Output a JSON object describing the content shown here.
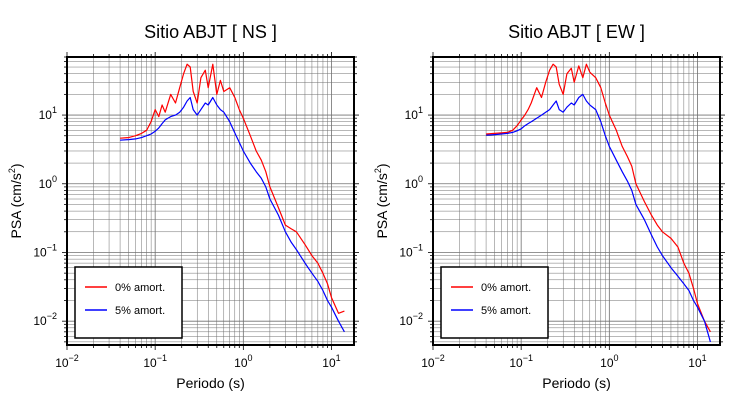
{
  "chart_data": [
    {
      "type": "line",
      "title": "Sitio ABJT [ NS ]",
      "xlabel": "Periodo (s)",
      "ylabel": "PSA (cm/s",
      "ylabel_sup": "2",
      "ylabel_end": ")",
      "xscale": "log",
      "yscale": "log",
      "xlim": [
        0.01,
        18
      ],
      "ylim": [
        0.0045,
        70
      ],
      "grid": true,
      "legend_position": "bottom-left",
      "x_ticks": [
        {
          "value": 0.01,
          "base": "10",
          "exp": "−2"
        },
        {
          "value": 0.1,
          "base": "10",
          "exp": "−1"
        },
        {
          "value": 1,
          "base": "10",
          "exp": "0"
        },
        {
          "value": 10,
          "base": "10",
          "exp": "1"
        }
      ],
      "y_ticks": [
        {
          "value": 0.01,
          "base": "10",
          "exp": "−2"
        },
        {
          "value": 0.1,
          "base": "10",
          "exp": "−1"
        },
        {
          "value": 1,
          "base": "10",
          "exp": "0"
        },
        {
          "value": 10,
          "base": "10",
          "exp": "1"
        }
      ],
      "series": [
        {
          "name": "0% amort.",
          "color": "#ff0000",
          "x": [
            0.04,
            0.05,
            0.06,
            0.07,
            0.08,
            0.09,
            0.1,
            0.11,
            0.12,
            0.13,
            0.15,
            0.17,
            0.19,
            0.21,
            0.23,
            0.25,
            0.27,
            0.3,
            0.33,
            0.37,
            0.4,
            0.45,
            0.5,
            0.55,
            0.6,
            0.7,
            0.8,
            0.9,
            1.0,
            1.2,
            1.4,
            1.6,
            1.8,
            2.0,
            2.5,
            3.0,
            3.5,
            4.0,
            5.0,
            6.0,
            7.0,
            8.0,
            9.0,
            10.0,
            12.0,
            14.0
          ],
          "y": [
            4.6,
            4.7,
            5.0,
            5.4,
            6.0,
            8.0,
            12.0,
            9.5,
            14.0,
            11.0,
            20.0,
            15.0,
            25.0,
            40.0,
            55.0,
            50.0,
            22.0,
            15.0,
            35.0,
            45.0,
            25.0,
            55.0,
            20.0,
            32.0,
            22.0,
            25.0,
            18.0,
            12.0,
            9.0,
            5.0,
            3.0,
            2.2,
            1.5,
            0.9,
            0.45,
            0.25,
            0.22,
            0.2,
            0.13,
            0.09,
            0.07,
            0.05,
            0.035,
            0.022,
            0.013,
            0.014
          ]
        },
        {
          "name": "5% amort.",
          "color": "#0000ff",
          "x": [
            0.04,
            0.05,
            0.06,
            0.07,
            0.08,
            0.09,
            0.1,
            0.11,
            0.12,
            0.13,
            0.15,
            0.17,
            0.19,
            0.21,
            0.23,
            0.25,
            0.27,
            0.3,
            0.33,
            0.37,
            0.4,
            0.45,
            0.5,
            0.55,
            0.6,
            0.7,
            0.8,
            0.9,
            1.0,
            1.2,
            1.4,
            1.6,
            1.8,
            2.0,
            2.5,
            3.0,
            3.5,
            4.0,
            5.0,
            6.0,
            7.0,
            8.0,
            9.0,
            10.0,
            12.0,
            14.0
          ],
          "y": [
            4.3,
            4.4,
            4.5,
            4.7,
            5.0,
            5.3,
            5.8,
            6.5,
            7.5,
            8.5,
            9.5,
            10.0,
            11.0,
            13.0,
            16.0,
            18.0,
            12.0,
            10.0,
            12.0,
            15.0,
            14.0,
            18.0,
            14.0,
            12.0,
            11.0,
            8.0,
            5.5,
            4.0,
            3.0,
            2.0,
            1.5,
            1.2,
            0.9,
            0.6,
            0.35,
            0.2,
            0.14,
            0.11,
            0.07,
            0.05,
            0.038,
            0.028,
            0.02,
            0.016,
            0.01,
            0.007
          ]
        }
      ]
    },
    {
      "type": "line",
      "title": "Sitio ABJT [ EW ]",
      "xlabel": "Periodo (s)",
      "ylabel": "PSA (cm/s",
      "ylabel_sup": "2",
      "ylabel_end": ")",
      "xscale": "log",
      "yscale": "log",
      "xlim": [
        0.01,
        18
      ],
      "ylim": [
        0.0045,
        70
      ],
      "grid": true,
      "legend_position": "bottom-left",
      "x_ticks": [
        {
          "value": 0.01,
          "base": "10",
          "exp": "−2"
        },
        {
          "value": 0.1,
          "base": "10",
          "exp": "−1"
        },
        {
          "value": 1,
          "base": "10",
          "exp": "0"
        },
        {
          "value": 10,
          "base": "10",
          "exp": "1"
        }
      ],
      "y_ticks": [
        {
          "value": 0.01,
          "base": "10",
          "exp": "−2"
        },
        {
          "value": 0.1,
          "base": "10",
          "exp": "−1"
        },
        {
          "value": 1,
          "base": "10",
          "exp": "0"
        },
        {
          "value": 10,
          "base": "10",
          "exp": "1"
        }
      ],
      "series": [
        {
          "name": "0% amort.",
          "color": "#ff0000",
          "x": [
            0.04,
            0.05,
            0.06,
            0.07,
            0.08,
            0.09,
            0.1,
            0.11,
            0.12,
            0.13,
            0.15,
            0.17,
            0.19,
            0.21,
            0.23,
            0.25,
            0.27,
            0.3,
            0.33,
            0.37,
            0.4,
            0.45,
            0.5,
            0.55,
            0.6,
            0.7,
            0.8,
            0.9,
            1.0,
            1.2,
            1.4,
            1.6,
            1.8,
            2.0,
            2.5,
            3.0,
            3.5,
            4.0,
            5.0,
            6.0,
            7.0,
            8.0,
            9.0,
            10.0,
            12.0,
            14.0
          ],
          "y": [
            5.3,
            5.4,
            5.5,
            5.6,
            6.0,
            7.0,
            8.5,
            10.0,
            12.0,
            15.0,
            25.0,
            18.0,
            30.0,
            45.0,
            55.0,
            50.0,
            28.0,
            20.0,
            40.0,
            48.0,
            30.0,
            52.0,
            35.0,
            55.0,
            42.0,
            35.0,
            25.0,
            15.0,
            10.0,
            6.0,
            3.5,
            2.5,
            1.8,
            1.0,
            0.55,
            0.35,
            0.25,
            0.2,
            0.16,
            0.12,
            0.07,
            0.05,
            0.03,
            0.018,
            0.01,
            0.007
          ]
        },
        {
          "name": "5% amort.",
          "color": "#0000ff",
          "x": [
            0.04,
            0.05,
            0.06,
            0.07,
            0.08,
            0.09,
            0.1,
            0.11,
            0.12,
            0.13,
            0.15,
            0.17,
            0.19,
            0.21,
            0.23,
            0.25,
            0.27,
            0.3,
            0.33,
            0.37,
            0.4,
            0.45,
            0.5,
            0.55,
            0.6,
            0.7,
            0.8,
            0.9,
            1.0,
            1.2,
            1.4,
            1.6,
            1.8,
            2.0,
            2.5,
            3.0,
            3.5,
            4.0,
            5.0,
            6.0,
            7.0,
            8.0,
            9.0,
            10.0,
            12.0,
            14.0
          ],
          "y": [
            5.1,
            5.2,
            5.3,
            5.4,
            5.6,
            5.9,
            6.3,
            7.0,
            7.5,
            8.0,
            9.0,
            10.0,
            11.0,
            12.0,
            14.0,
            16.0,
            12.0,
            11.0,
            13.0,
            15.0,
            14.0,
            18.0,
            20.0,
            16.0,
            14.0,
            12.0,
            8.0,
            5.0,
            3.5,
            2.2,
            1.5,
            1.1,
            0.8,
            0.5,
            0.3,
            0.18,
            0.12,
            0.09,
            0.06,
            0.045,
            0.035,
            0.028,
            0.02,
            0.016,
            0.01,
            0.005
          ]
        }
      ]
    }
  ]
}
